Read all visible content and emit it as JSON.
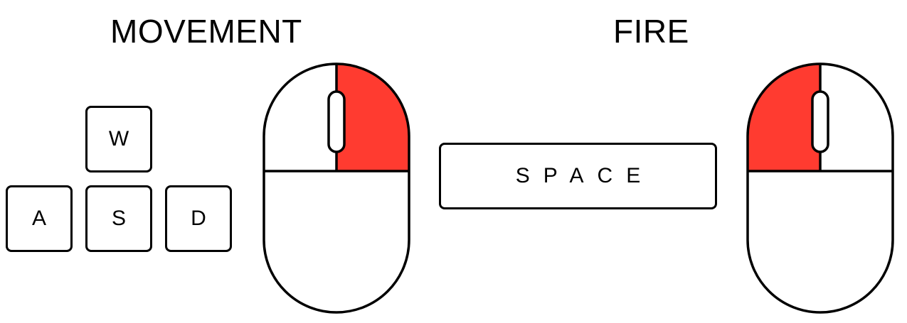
{
  "headings": {
    "movement": "MOVEMENT",
    "fire": "FIRE"
  },
  "keys": {
    "w": "W",
    "a": "A",
    "s": "S",
    "d": "D",
    "space": "SPACE"
  },
  "mice": {
    "movement": {
      "highlighted_button": "right"
    },
    "fire": {
      "highlighted_button": "left"
    }
  },
  "colors": {
    "highlight": "#ff3b30",
    "outline": "#000000",
    "background": "#ffffff"
  }
}
